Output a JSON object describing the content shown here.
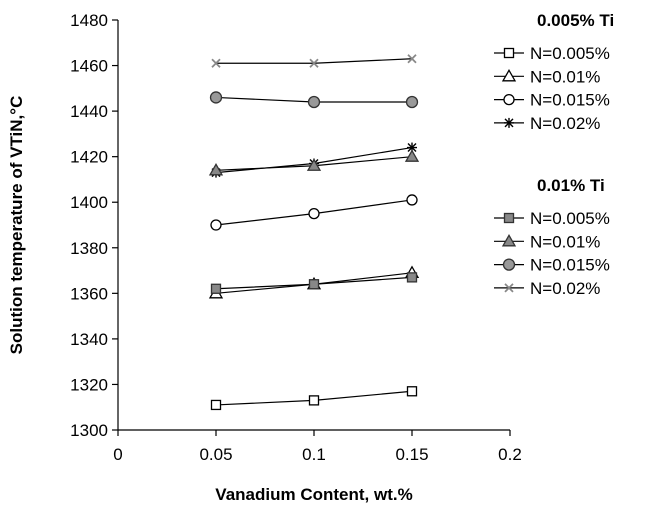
{
  "chart_data": {
    "type": "line",
    "title": "",
    "xlabel": "Vanadium Content, wt.%",
    "ylabel": "Solution temperature of VTiN,°C",
    "xlim": [
      0,
      0.2
    ],
    "ylim": [
      1300,
      1480
    ],
    "xticks": [
      0,
      0.05,
      0.1,
      0.15,
      0.2
    ],
    "xtick_labels": [
      "0",
      "0.05",
      "0.1",
      "0.15",
      "0.2"
    ],
    "yticks": [
      1300,
      1320,
      1340,
      1360,
      1380,
      1400,
      1420,
      1440,
      1460,
      1480
    ],
    "ytick_labels": [
      "1300",
      "1320",
      "1340",
      "1360",
      "1380",
      "1400",
      "1420",
      "1440",
      "1460",
      "1480"
    ],
    "grid": false,
    "legend_position": "right",
    "x": [
      0.05,
      0.1,
      0.15
    ],
    "legend_groups": [
      {
        "title": "0.005% Ti",
        "series_indices": [
          0,
          1,
          2,
          3
        ]
      },
      {
        "title": "0.01% Ti",
        "series_indices": [
          4,
          5,
          6,
          7
        ]
      }
    ],
    "series": [
      {
        "name": "N=0.005%",
        "marker": "open-square",
        "color": "#000000",
        "values": [
          1311,
          1313,
          1317
        ]
      },
      {
        "name": "N=0.01%",
        "marker": "open-triangle",
        "color": "#000000",
        "values": [
          1360,
          1364,
          1369
        ]
      },
      {
        "name": "N=0.015%",
        "marker": "open-circle",
        "color": "#000000",
        "values": [
          1390,
          1395,
          1401
        ]
      },
      {
        "name": "N=0.02%",
        "marker": "star",
        "color": "#000000",
        "values": [
          1413,
          1417,
          1424
        ]
      },
      {
        "name": "N=0.005%",
        "marker": "filled-square",
        "color": "#888888",
        "values": [
          1362,
          1364,
          1367
        ]
      },
      {
        "name": "N=0.01%",
        "marker": "filled-triangle",
        "color": "#888888",
        "values": [
          1414,
          1416,
          1420
        ]
      },
      {
        "name": "N=0.015%",
        "marker": "filled-circle",
        "color": "#999999",
        "values": [
          1446,
          1444,
          1444
        ]
      },
      {
        "name": "N=0.02%",
        "marker": "x-cross",
        "color": "#888888",
        "values": [
          1461,
          1461,
          1463
        ]
      }
    ]
  }
}
